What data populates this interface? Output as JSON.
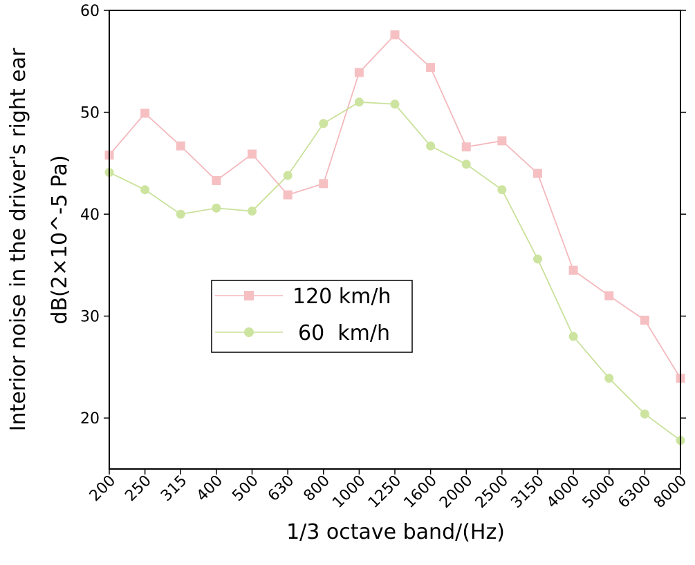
{
  "chart_data": {
    "type": "line",
    "xlabel": "1/3 octave band/(Hz)",
    "ylabel_line1": "Interior noise in the driver's right ear",
    "ylabel_line2": "dB(2×10^-5 Pa)",
    "categories": [
      "200",
      "250",
      "315",
      "400",
      "500",
      "630",
      "800",
      "1000",
      "1250",
      "1600",
      "2000",
      "2500",
      "3150",
      "4000",
      "5000",
      "6300",
      "8000"
    ],
    "ylim": [
      15,
      60
    ],
    "yticks": [
      20,
      30,
      40,
      50,
      60
    ],
    "grid": false,
    "legend_position": "center-left",
    "series": [
      {
        "name": "120 km/h",
        "marker": "square",
        "color": "#f4b8bc",
        "marker_color": "#f6c0c3",
        "values": [
          45.8,
          49.9,
          46.7,
          43.3,
          45.9,
          41.9,
          43.0,
          53.9,
          57.6,
          54.4,
          46.6,
          47.2,
          44.0,
          34.5,
          32.0,
          29.6,
          23.9
        ]
      },
      {
        "name": "60  km/h",
        "marker": "circle",
        "color": "#c9e19a",
        "marker_color": "#cde4a0",
        "values": [
          44.1,
          42.4,
          40.0,
          40.6,
          40.3,
          43.8,
          48.9,
          51.0,
          50.8,
          46.7,
          44.9,
          42.4,
          35.6,
          28.0,
          23.9,
          20.4,
          17.8
        ]
      }
    ]
  }
}
